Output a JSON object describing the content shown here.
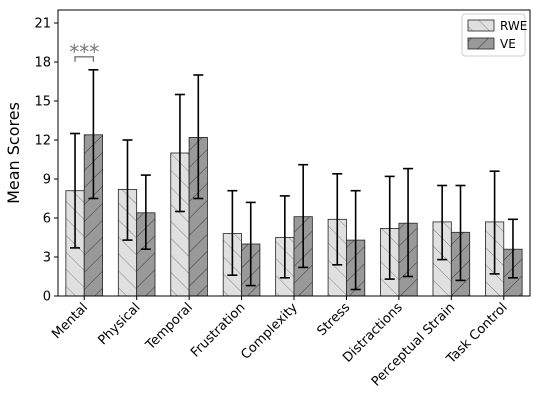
{
  "chart_data": {
    "type": "bar",
    "ylabel": "Mean Scores",
    "xlabel": "",
    "ylim": [
      0,
      22
    ],
    "yticks": [
      0,
      3,
      6,
      9,
      12,
      15,
      18,
      21
    ],
    "categories": [
      "Mental",
      "Physical",
      "Temporal",
      "Frustration",
      "Complexity",
      "Stress",
      "Distractions",
      "Perceptual Strain",
      "Task Control"
    ],
    "series": [
      {
        "name": "RWE",
        "color": "#e0e0e0",
        "hatch": "forward-diagonal",
        "values": [
          8.1,
          8.2,
          11.0,
          4.8,
          4.5,
          5.9,
          5.2,
          5.7,
          5.7
        ],
        "error_low": [
          3.7,
          4.3,
          6.5,
          1.6,
          1.4,
          2.4,
          1.3,
          2.8,
          1.7
        ],
        "error_high": [
          12.5,
          12.0,
          15.5,
          8.1,
          7.7,
          9.4,
          9.2,
          8.5,
          9.6
        ]
      },
      {
        "name": "VE",
        "color": "#999999",
        "hatch": "back-diagonal",
        "values": [
          12.4,
          6.4,
          12.2,
          4.0,
          6.1,
          4.3,
          5.6,
          4.9,
          3.6
        ],
        "error_low": [
          7.5,
          3.6,
          7.5,
          0.8,
          2.2,
          0.5,
          1.5,
          1.2,
          1.4
        ],
        "error_high": [
          17.4,
          9.3,
          17.0,
          7.2,
          10.1,
          8.1,
          9.8,
          8.5,
          5.9
        ]
      }
    ],
    "legend_position": "top-right",
    "grid": false,
    "annotations": [
      {
        "text": "***",
        "category": "Mental",
        "spans_series": [
          "RWE",
          "VE"
        ],
        "y": 18.4
      }
    ]
  }
}
